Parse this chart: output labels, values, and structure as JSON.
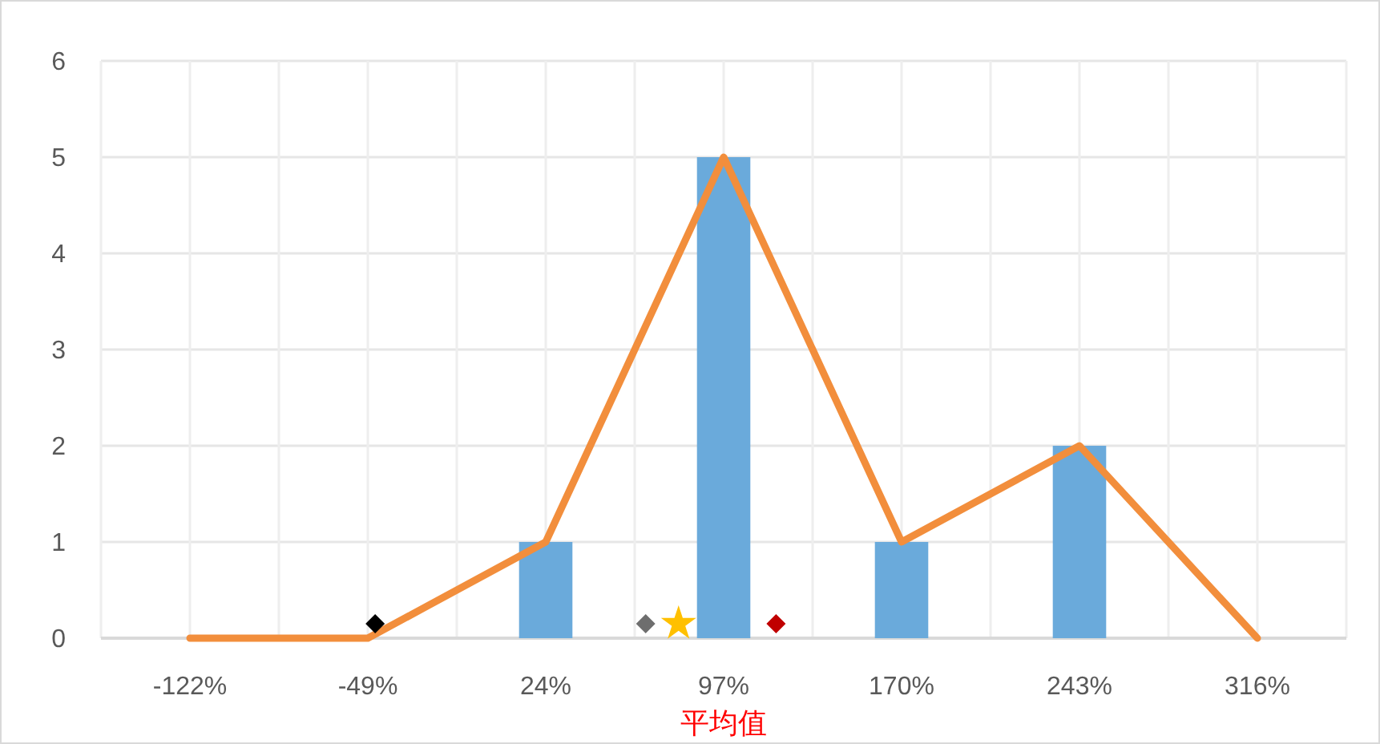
{
  "chart_data": {
    "type": "bar",
    "x": [
      -122,
      -49,
      24,
      97,
      170,
      243,
      316
    ],
    "series": [
      {
        "color": "#6aaadb",
        "values": [
          0,
          0,
          1,
          5,
          1,
          2,
          0
        ]
      },
      {
        "type": "line",
        "color": "#f28e3c",
        "values": [
          0,
          0,
          1,
          5,
          1,
          2,
          0
        ],
        "marker": "none"
      },
      {
        "type": "scatter",
        "color": "#000000",
        "marker": "diamond",
        "x": [
          -46
        ],
        "values": [
          0.15
        ]
      },
      {
        "type": "scatter",
        "color": "#6e6e6e",
        "marker": "diamond",
        "x": [
          65
        ],
        "values": [
          0.15
        ]
      },
      {
        "type": "scatter",
        "color": "#ffc000",
        "marker": "star",
        "x": [
          78.5
        ],
        "values": [
          0.15
        ]
      },
      {
        "type": "scatter",
        "color": "#c00000",
        "marker": "diamond",
        "x": [
          118.5
        ],
        "values": [
          0.15
        ]
      }
    ],
    "xlim": [
      -158.5,
      352.5
    ],
    "xticks": [
      {
        "value": -158.5,
        "label": null
      },
      {
        "value": -122,
        "label": "-122%"
      },
      {
        "value": -85.5,
        "label": null
      },
      {
        "value": -49,
        "label": "-49%"
      },
      {
        "value": -12.5,
        "label": null
      },
      {
        "value": 24,
        "label": "24%"
      },
      {
        "value": 60.5,
        "label": null
      },
      {
        "value": 97,
        "label": "97%"
      },
      {
        "value": 133.5,
        "label": null
      },
      {
        "value": 170,
        "label": "170%"
      },
      {
        "value": 206.5,
        "label": null
      },
      {
        "value": 243,
        "label": "243%"
      },
      {
        "value": 279.5,
        "label": null
      },
      {
        "value": 316,
        "label": "316%"
      },
      {
        "value": 352.5,
        "label": null
      }
    ],
    "ylim": [
      0,
      6
    ],
    "yticks": [
      0,
      1,
      2,
      3,
      4,
      5,
      6
    ],
    "grid": true,
    "annotations": [
      "平均值"
    ]
  }
}
